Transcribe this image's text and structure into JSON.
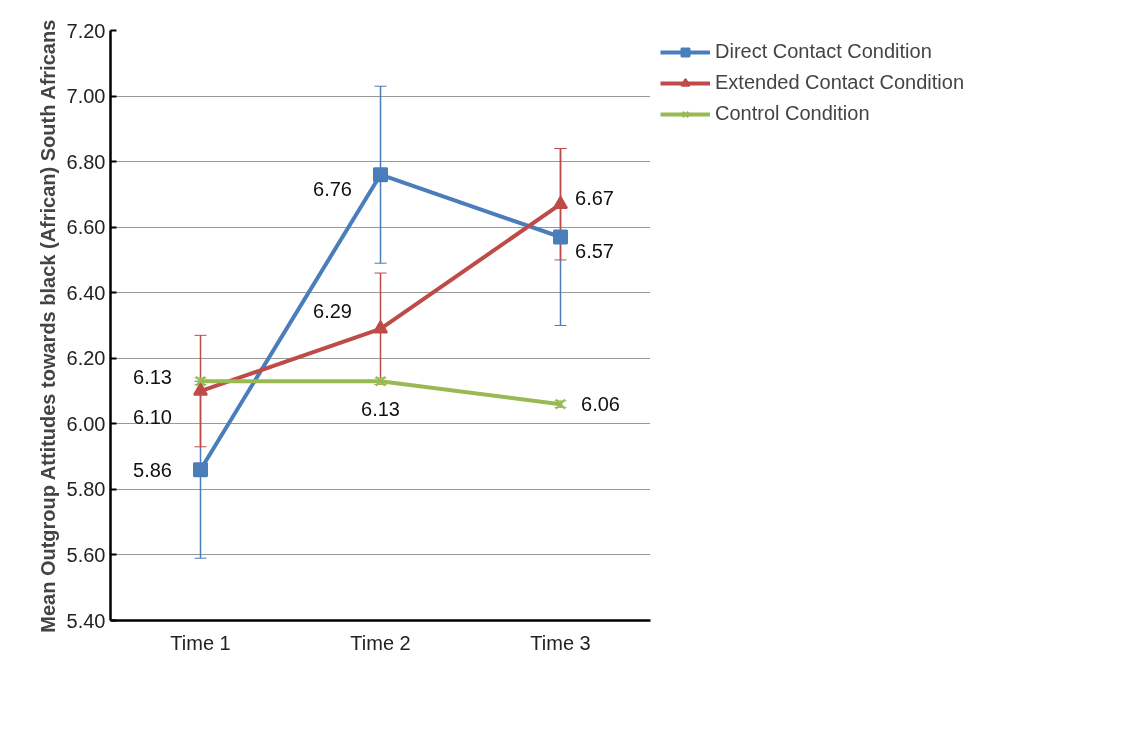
{
  "chart_data": {
    "type": "line",
    "ylabel": "Mean Outgroup Attitudes towards black (African) South Africans",
    "categories": [
      "Time 1",
      "Time 2",
      "Time 3"
    ],
    "series": [
      {
        "name": "Direct Contact Condition",
        "color": "#4a7ebb",
        "marker": "square",
        "values": [
          5.86,
          6.76,
          6.57
        ],
        "value_labels": [
          "5.86",
          "6.76",
          "6.57"
        ],
        "errors": [
          0.27,
          0.27,
          0.27
        ]
      },
      {
        "name": "Extended Contact Condition",
        "color": "#be4b48",
        "marker": "triangle",
        "values": [
          6.1,
          6.29,
          6.67
        ],
        "value_labels": [
          "6.10",
          "6.29",
          "6.67"
        ],
        "errors": [
          0.17,
          0.17,
          0.17
        ]
      },
      {
        "name": "Control Condition",
        "color": "#98b954",
        "marker": "x",
        "values": [
          6.13,
          6.13,
          6.06
        ],
        "value_labels": [
          "6.13",
          "6.13",
          "6.06"
        ],
        "errors": [
          0.01,
          0.01,
          0.01
        ]
      }
    ],
    "ylim": [
      5.4,
      7.2
    ],
    "yticks": [
      {
        "value": 5.4,
        "label": "5.40"
      },
      {
        "value": 5.6,
        "label": "5.60"
      },
      {
        "value": 5.8,
        "label": "5.80"
      },
      {
        "value": 6.0,
        "label": "6.00"
      },
      {
        "value": 6.2,
        "label": "6.20"
      },
      {
        "value": 6.4,
        "label": "6.40"
      },
      {
        "value": 6.6,
        "label": "6.60"
      },
      {
        "value": 6.8,
        "label": "6.80"
      },
      {
        "value": 7.0,
        "label": "7.00"
      },
      {
        "value": 7.2,
        "label": "7.20"
      }
    ],
    "grid": "y",
    "legend": "top right",
    "line_style": "solid"
  }
}
